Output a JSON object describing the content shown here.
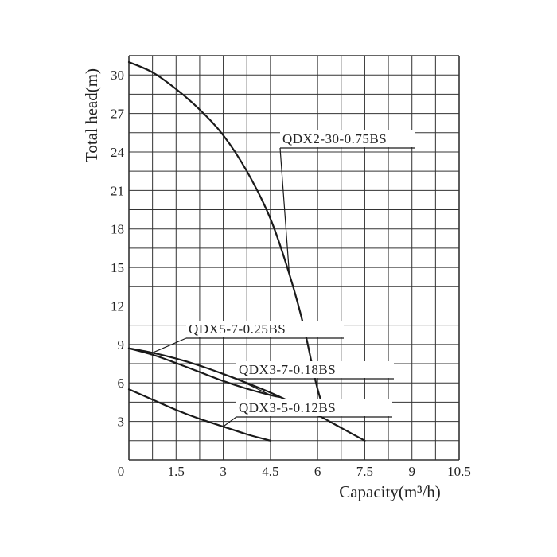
{
  "chart_data": {
    "type": "line",
    "xlabel": "Capacity(m³/h)",
    "ylabel": "Total head(m)",
    "xlim": [
      0,
      10.5
    ],
    "ylim": [
      0,
      31.5
    ],
    "x_ticks": [
      "0",
      "1.5",
      "3",
      "4.5",
      "6",
      "7.5",
      "9",
      "10.5"
    ],
    "x_tick_values": [
      0,
      1.5,
      3,
      4.5,
      6,
      7.5,
      9,
      10.5
    ],
    "y_ticks": [
      "3",
      "6",
      "9",
      "12",
      "15",
      "18",
      "21",
      "24",
      "27",
      "30"
    ],
    "y_tick_values": [
      3,
      6,
      9,
      12,
      15,
      18,
      21,
      24,
      27,
      30
    ],
    "grid": true,
    "x_grid_step": 0.75,
    "y_grid_step": 1.5,
    "series": [
      {
        "name": "QDX2-30-0.75BS",
        "x": [
          0,
          0.75,
          1.5,
          2.25,
          3,
          3.75,
          4.5,
          5.1,
          5.55,
          5.95,
          6.2
        ],
        "y": [
          31,
          30.2,
          28.9,
          27.3,
          25.3,
          22.5,
          18.8,
          14.5,
          10.5,
          6.0,
          3.9
        ]
      },
      {
        "name": "QDX5-7-0.25BS",
        "x": [
          0,
          0.75,
          1.5,
          2.25,
          3,
          3.75,
          4.5,
          5.25,
          6,
          6.75,
          7.5
        ],
        "y": [
          8.7,
          8.35,
          7.9,
          7.35,
          6.7,
          6.0,
          5.25,
          4.4,
          3.5,
          2.5,
          1.5
        ]
      },
      {
        "name": "QDX3-7-0.18BS",
        "x": [
          0,
          0.75,
          1.5,
          2.25,
          3,
          3.75,
          4.5,
          4.8
        ],
        "y": [
          8.7,
          8.2,
          7.55,
          6.85,
          6.15,
          5.55,
          5.05,
          4.9
        ]
      },
      {
        "name": "QDX3-5-0.12BS",
        "x": [
          0,
          0.75,
          1.5,
          2.25,
          3,
          3.75,
          4.5
        ],
        "y": [
          5.5,
          4.7,
          3.9,
          3.2,
          2.6,
          2.0,
          1.5
        ]
      }
    ],
    "labels": [
      {
        "text": "QDX2-30-0.75BS",
        "series": 0
      },
      {
        "text": "QDX5-7-0.25BS",
        "series": 1
      },
      {
        "text": "QDX3-7-0.18BS",
        "series": 2
      },
      {
        "text": "QDX3-5-0.12BS",
        "series": 3
      }
    ],
    "colors": {
      "line": "#1a1a1a",
      "grid": "#333333",
      "background": "#ffffff"
    }
  }
}
